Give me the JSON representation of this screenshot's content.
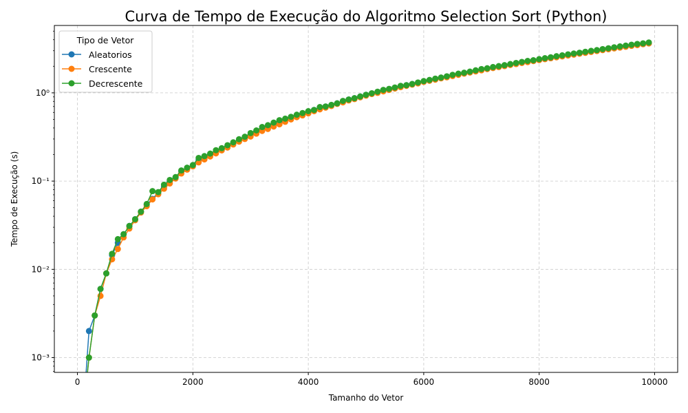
{
  "chart_data": {
    "type": "line",
    "title": "Curva de Tempo de Execução do Algoritmo Selection Sort (Python)",
    "xlabel": "Tamanho do Vetor",
    "ylabel": "Tempo de Execução (s)",
    "xlim": [
      -400,
      10400
    ],
    "ylim": [
      0.00068,
      5.8
    ],
    "yscale": "log",
    "grid": true,
    "x_ticks": [
      0,
      2000,
      4000,
      6000,
      8000,
      10000
    ],
    "x_tick_labels": [
      "0",
      "2000",
      "4000",
      "6000",
      "8000",
      "10000"
    ],
    "y_ticks": [
      0.001,
      0.01,
      0.1,
      1
    ],
    "y_tick_labels": [
      "10⁻³",
      "10⁻²",
      "10⁻¹",
      "10⁰"
    ],
    "legend": {
      "title": "Tipo de Vetor",
      "position": "top-left"
    },
    "x": [
      100,
      200,
      300,
      400,
      500,
      600,
      700,
      800,
      900,
      1000,
      1100,
      1200,
      1300,
      1400,
      1500,
      1600,
      1700,
      1800,
      1900,
      2000,
      2100,
      2200,
      2300,
      2400,
      2500,
      2600,
      2700,
      2800,
      2900,
      3000,
      3100,
      3200,
      3300,
      3400,
      3500,
      3600,
      3700,
      3800,
      3900,
      4000,
      4100,
      4200,
      4300,
      4400,
      4500,
      4600,
      4700,
      4800,
      4900,
      5000,
      5100,
      5200,
      5300,
      5400,
      5500,
      5600,
      5700,
      5800,
      5900,
      6000,
      6100,
      6200,
      6300,
      6400,
      6500,
      6600,
      6700,
      6800,
      6900,
      7000,
      7100,
      7200,
      7300,
      7400,
      7500,
      7600,
      7700,
      7800,
      7900,
      8000,
      8100,
      8200,
      8300,
      8400,
      8500,
      8600,
      8700,
      8800,
      8900,
      9000,
      9100,
      9200,
      9300,
      9400,
      9500,
      9600,
      9700,
      9800,
      9900
    ],
    "series": [
      {
        "name": "Aleatorios",
        "color": "#1f77b4",
        "values": [
          0,
          0.002,
          0.003,
          0.006,
          0.009,
          0.0145,
          0.02,
          0.025,
          0.031,
          0.037,
          0.045,
          0.054,
          0.063,
          0.074,
          0.086,
          0.099,
          0.11,
          0.128,
          0.14,
          0.15,
          0.173,
          0.18,
          0.2,
          0.215,
          0.228,
          0.25,
          0.27,
          0.295,
          0.31,
          0.33,
          0.365,
          0.39,
          0.415,
          0.44,
          0.47,
          0.5,
          0.53,
          0.56,
          0.58,
          0.61,
          0.64,
          0.68,
          0.7,
          0.72,
          0.76,
          0.8,
          0.84,
          0.87,
          0.91,
          0.95,
          0.98,
          1.02,
          1.07,
          1.1,
          1.14,
          1.18,
          1.22,
          1.26,
          1.3,
          1.34,
          1.39,
          1.43,
          1.47,
          1.52,
          1.57,
          1.62,
          1.66,
          1.71,
          1.76,
          1.81,
          1.87,
          1.92,
          1.97,
          2.02,
          2.08,
          2.13,
          2.19,
          2.24,
          2.3,
          2.36,
          2.42,
          2.47,
          2.54,
          2.6,
          2.66,
          2.72,
          2.79,
          2.85,
          2.92,
          2.99,
          3.06,
          3.13,
          3.2,
          3.27,
          3.34,
          3.42,
          3.49,
          3.56,
          3.64
        ]
      },
      {
        "name": "Crescente",
        "color": "#ff7f0e",
        "values": [
          0,
          0.001,
          0.003,
          0.005,
          0.009,
          0.013,
          0.017,
          0.023,
          0.029,
          0.036,
          0.044,
          0.052,
          0.062,
          0.071,
          0.082,
          0.094,
          0.107,
          0.122,
          0.135,
          0.147,
          0.163,
          0.176,
          0.19,
          0.206,
          0.223,
          0.24,
          0.26,
          0.28,
          0.3,
          0.32,
          0.345,
          0.37,
          0.39,
          0.415,
          0.44,
          0.47,
          0.5,
          0.53,
          0.555,
          0.585,
          0.62,
          0.65,
          0.68,
          0.71,
          0.75,
          0.78,
          0.82,
          0.85,
          0.89,
          0.93,
          0.97,
          1.0,
          1.04,
          1.08,
          1.12,
          1.16,
          1.2,
          1.24,
          1.28,
          1.33,
          1.37,
          1.41,
          1.46,
          1.5,
          1.55,
          1.6,
          1.65,
          1.7,
          1.75,
          1.8,
          1.86,
          1.91,
          1.96,
          2.01,
          2.07,
          2.12,
          2.18,
          2.23,
          2.29,
          2.35,
          2.41,
          2.47,
          2.53,
          2.59,
          2.65,
          2.71,
          2.78,
          2.84,
          2.91,
          2.98,
          3.05,
          3.12,
          3.19,
          3.26,
          3.33,
          3.41,
          3.48,
          3.56,
          3.63
        ]
      },
      {
        "name": "Decrescente",
        "color": "#2ca02c",
        "values": [
          0,
          0.001,
          0.003,
          0.006,
          0.009,
          0.015,
          0.022,
          0.025,
          0.031,
          0.037,
          0.045,
          0.055,
          0.077,
          0.075,
          0.091,
          0.103,
          0.111,
          0.132,
          0.142,
          0.152,
          0.183,
          0.192,
          0.205,
          0.224,
          0.236,
          0.255,
          0.275,
          0.298,
          0.318,
          0.35,
          0.375,
          0.41,
          0.43,
          0.46,
          0.49,
          0.51,
          0.535,
          0.565,
          0.59,
          0.62,
          0.64,
          0.69,
          0.7,
          0.73,
          0.76,
          0.81,
          0.84,
          0.87,
          0.91,
          0.95,
          0.99,
          1.03,
          1.08,
          1.11,
          1.15,
          1.2,
          1.22,
          1.26,
          1.31,
          1.36,
          1.4,
          1.45,
          1.49,
          1.54,
          1.6,
          1.65,
          1.69,
          1.74,
          1.8,
          1.86,
          1.9,
          1.96,
          2.01,
          2.06,
          2.12,
          2.18,
          2.24,
          2.3,
          2.34,
          2.41,
          2.47,
          2.53,
          2.6,
          2.66,
          2.73,
          2.79,
          2.85,
          2.92,
          2.99,
          3.05,
          3.13,
          3.2,
          3.28,
          3.36,
          3.43,
          3.51,
          3.58,
          3.64,
          3.72
        ]
      }
    ]
  }
}
